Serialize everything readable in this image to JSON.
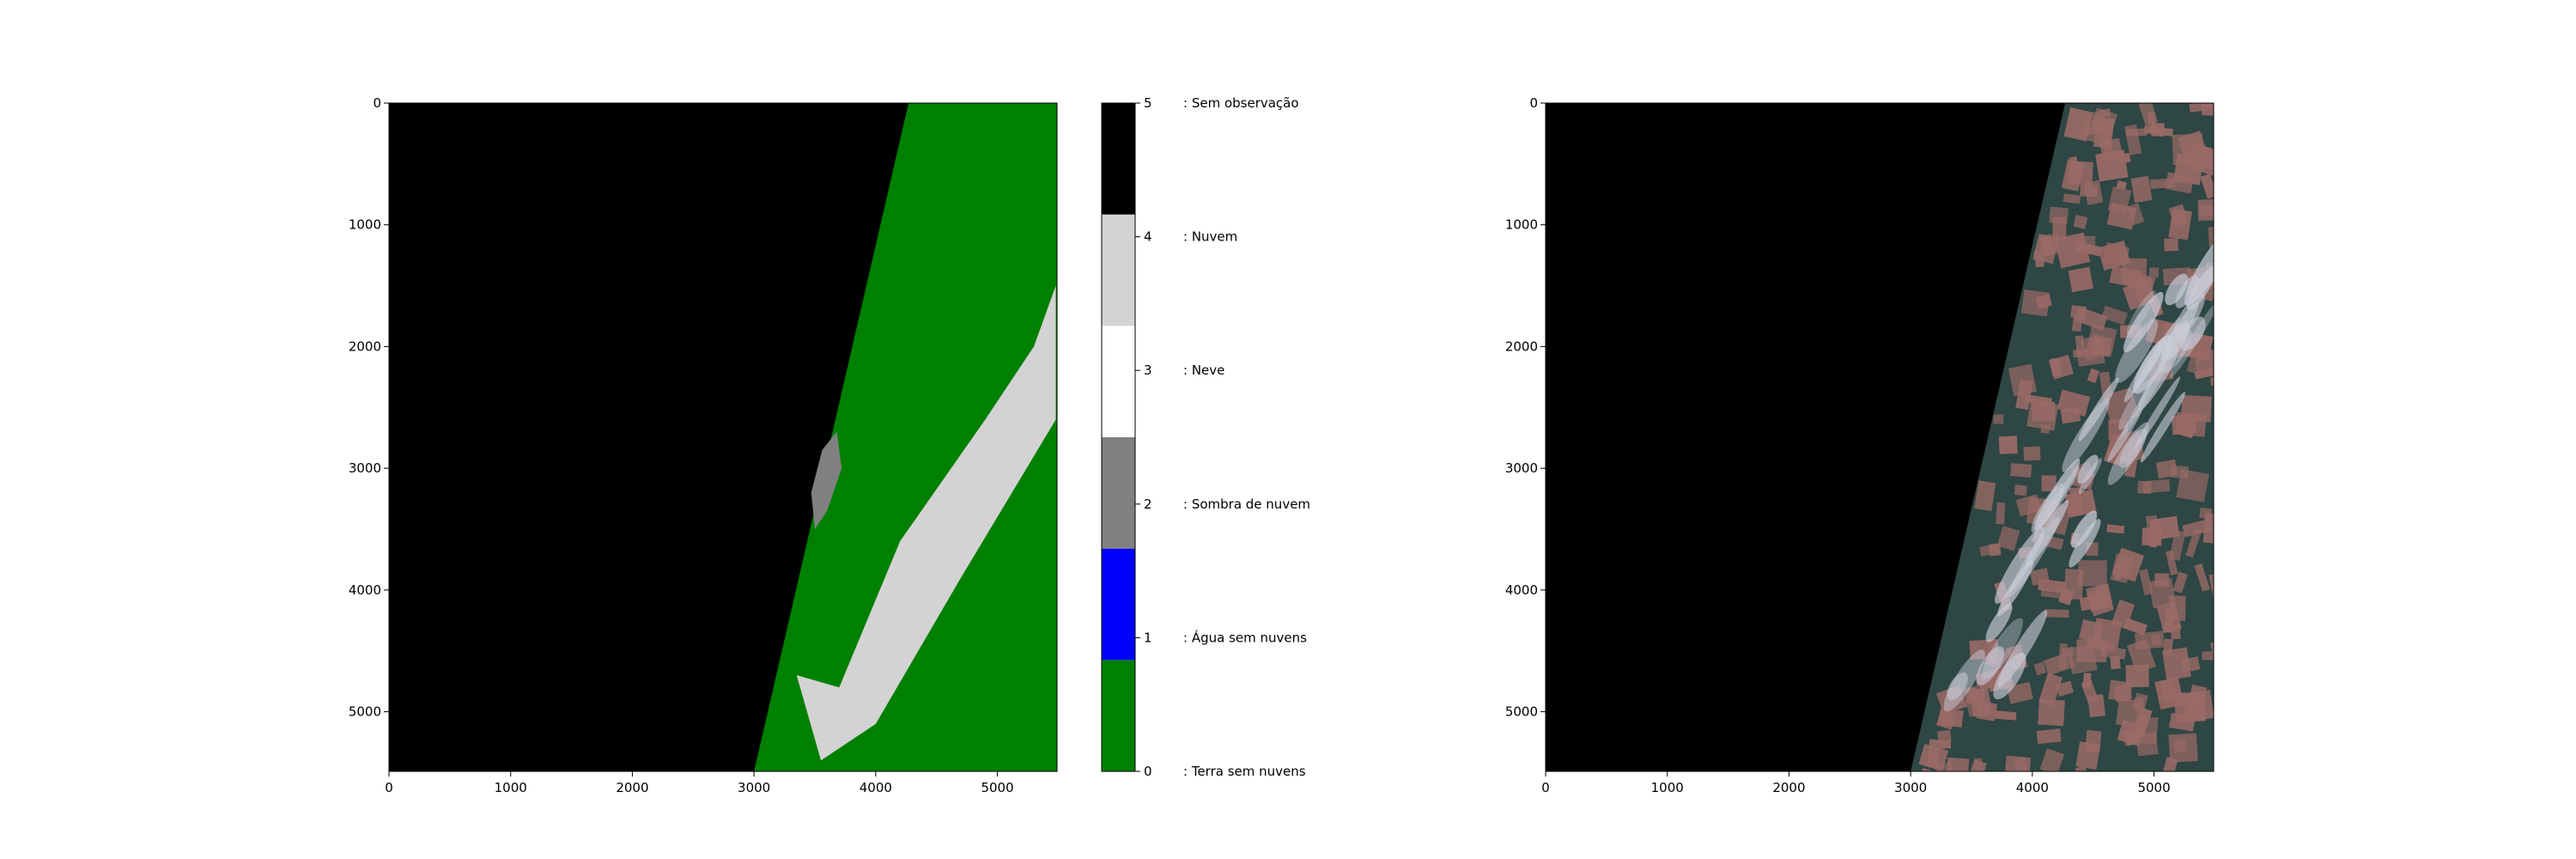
{
  "chart_data": [
    {
      "type": "heatmap",
      "title": "",
      "xlabel": "",
      "ylabel": "",
      "xlim": [
        0,
        5490
      ],
      "ylim": [
        5490,
        0
      ],
      "x_ticks": [
        0,
        1000,
        2000,
        3000,
        4000,
        5000
      ],
      "y_ticks": [
        0,
        1000,
        2000,
        3000,
        4000,
        5000
      ],
      "grid": false,
      "swath_edge": {
        "top_x": 4270,
        "bottom_x": 3000
      },
      "background_class": 5,
      "dominant_class_in_swath": 0,
      "cloud_region_approx": [
        [
          3700,
          4800
        ],
        [
          4200,
          3600
        ],
        [
          4900,
          2600
        ],
        [
          5300,
          2000
        ],
        [
          5480,
          1500
        ],
        [
          5480,
          2600
        ],
        [
          4700,
          3900
        ],
        [
          4000,
          5100
        ],
        [
          3550,
          5400
        ],
        [
          3350,
          4700
        ]
      ],
      "shadow_region_approx": [
        [
          3560,
          2850
        ],
        [
          3680,
          2700
        ],
        [
          3720,
          3000
        ],
        [
          3600,
          3350
        ],
        [
          3500,
          3500
        ],
        [
          3470,
          3200
        ]
      ],
      "colorbar": {
        "ticks": [
          0,
          1,
          2,
          3,
          4,
          5
        ],
        "classes": [
          {
            "value": 0,
            "label": ": Terra sem nuvens",
            "color": "#008000"
          },
          {
            "value": 1,
            "label": ": Água sem nuvens",
            "color": "#0000ff"
          },
          {
            "value": 2,
            "label": ": Sombra de nuvem",
            "color": "#808080"
          },
          {
            "value": 3,
            "label": ": Neve",
            "color": "#ffffff"
          },
          {
            "value": 4,
            "label": ": Nuvem",
            "color": "#d3d3d3"
          },
          {
            "value": 5,
            "label": ": Sem observação",
            "color": "#000000"
          }
        ]
      }
    },
    {
      "type": "heatmap",
      "title": "",
      "xlabel": "",
      "ylabel": "",
      "xlim": [
        0,
        5490
      ],
      "ylim": [
        5490,
        0
      ],
      "x_ticks": [
        0,
        1000,
        2000,
        3000,
        4000,
        5000
      ],
      "y_ticks": [
        0,
        1000,
        2000,
        3000,
        4000,
        5000
      ],
      "grid": false,
      "swath_edge": {
        "top_x": 4270,
        "bottom_x": 3000
      },
      "background_color": "#000000",
      "forest_color": "#2e4644",
      "field_color": "#9a6a66",
      "cloud_color": "#c9ccd8"
    }
  ]
}
